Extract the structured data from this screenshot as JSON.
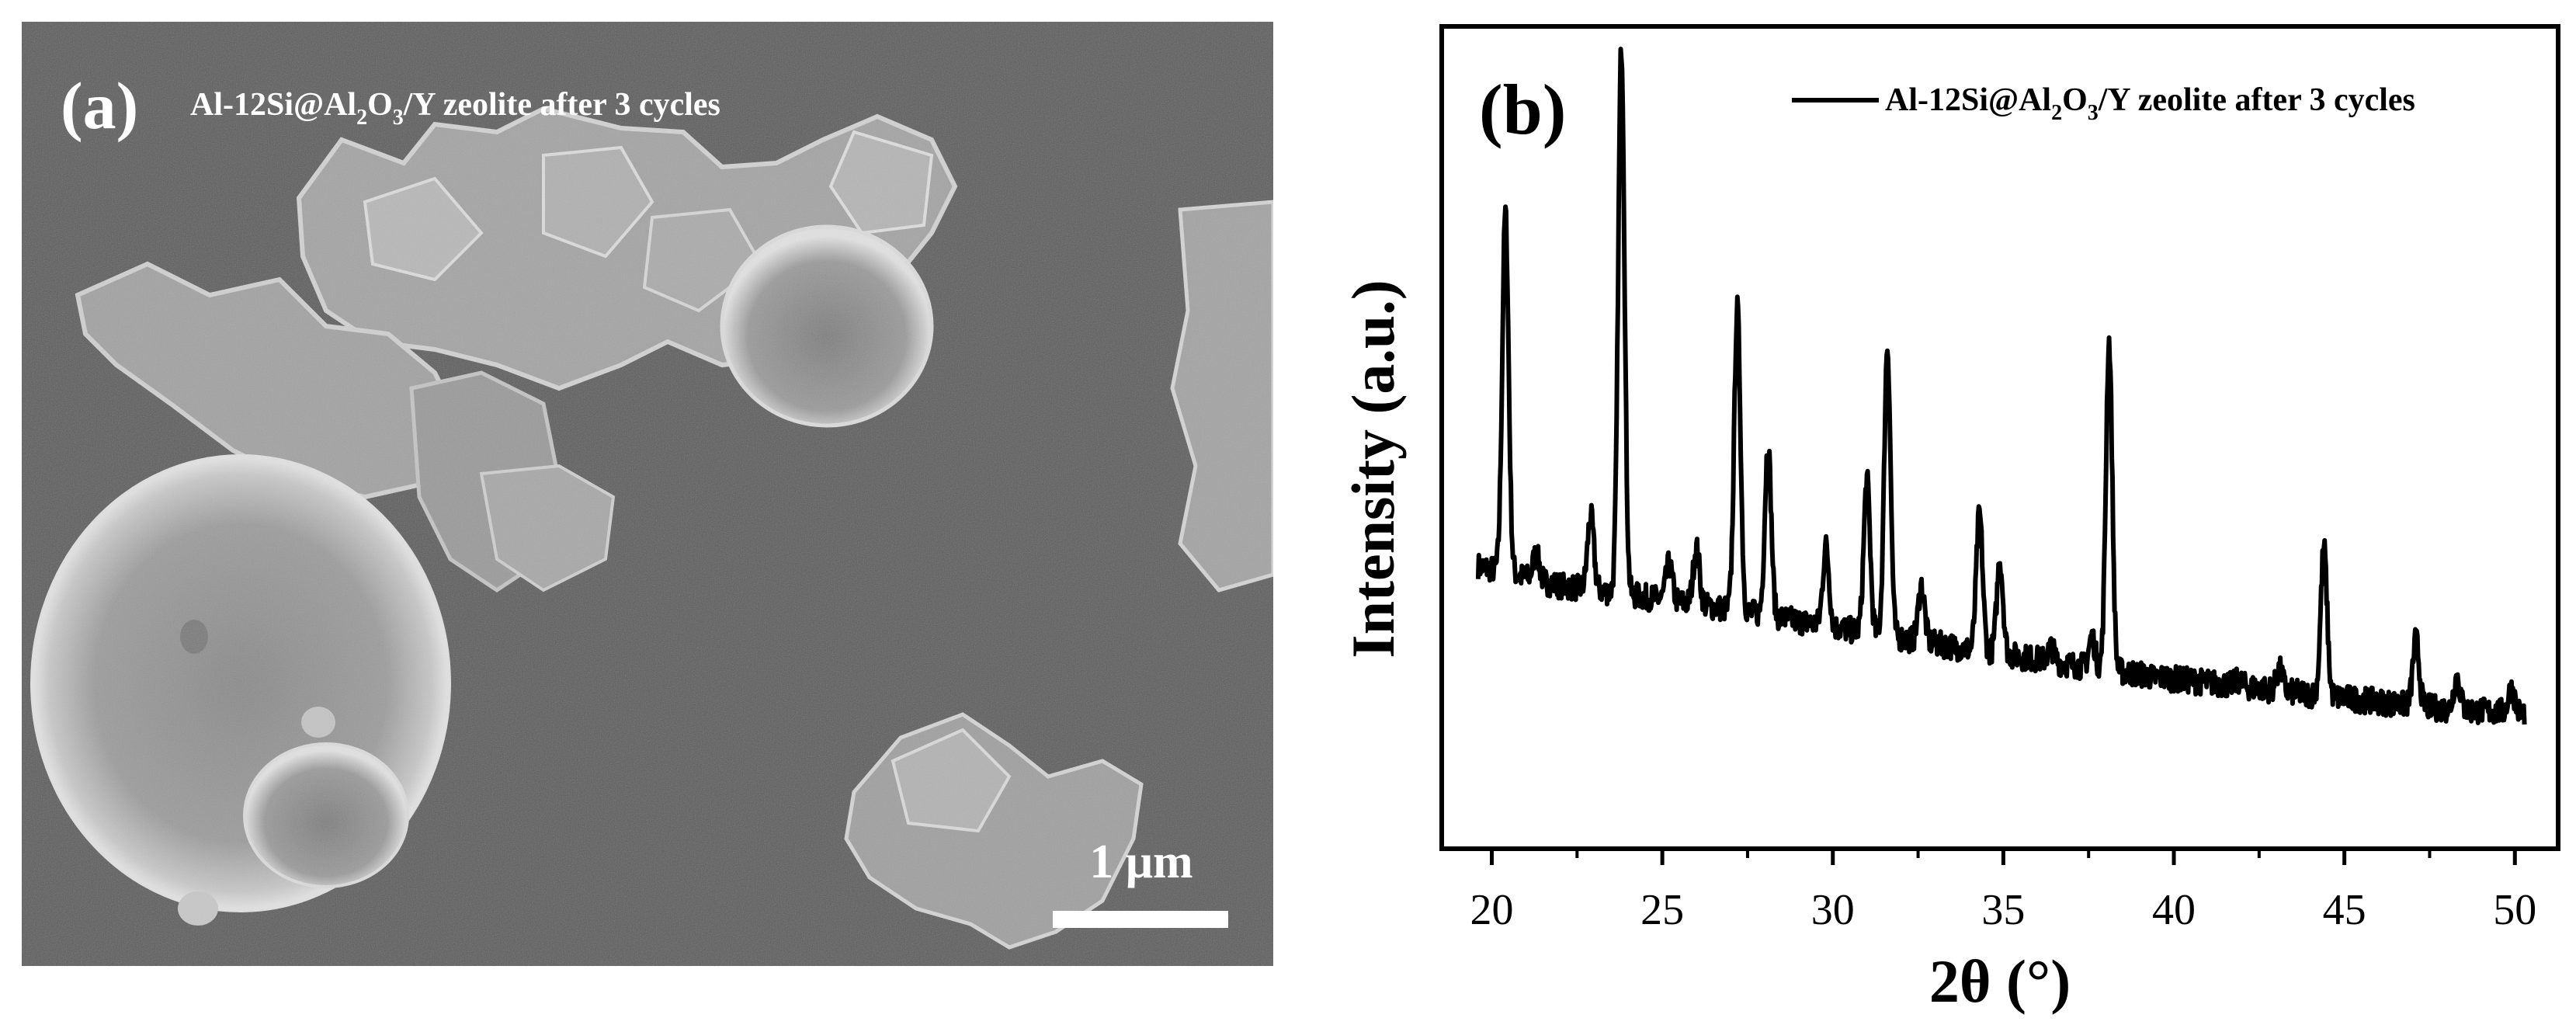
{
  "panel_a": {
    "label": "(a)",
    "caption_pre": "Al-12Si@Al",
    "caption_sub1": "2",
    "caption_mid": "O",
    "caption_sub2": "3",
    "caption_post": "/Y zeolite after 3 cycles",
    "scale_bar_label": "1 μm",
    "colors": {
      "background": "#5b5b5b",
      "particle": "#a9a9a9",
      "highlight": "#d9d9d9",
      "text": "#ffffff"
    }
  },
  "panel_b": {
    "label": "(b)",
    "chart_data": {
      "type": "line",
      "xlabel": "2θ (°)",
      "ylabel": "Intensity (a.u.)",
      "xlim": [
        18.6,
        51.2
      ],
      "ylim": [
        0,
        100
      ],
      "x_ticks": [
        20,
        25,
        30,
        35,
        40,
        45,
        50
      ],
      "y_ticks_labeled": false,
      "grid": false,
      "legend": "top-right",
      "legend_entry": {
        "pre": "Al-12Si@Al",
        "sub1": "2",
        "mid": "O",
        "sub2": "3",
        "post": "/Y zeolite after 3 cycles"
      },
      "series": [
        {
          "name": "Al-12Si@Al2O3/Y zeolite after 3 cycles",
          "color": "#000000",
          "baseline": [
            [
              19.6,
              34.3
            ],
            [
              21,
              32.9
            ],
            [
              22,
              31.9
            ],
            [
              24,
              30.8
            ],
            [
              26,
              29.6
            ],
            [
              28,
              28.3
            ],
            [
              30,
              26.8
            ],
            [
              32,
              25.5
            ],
            [
              34,
              24.1
            ],
            [
              36,
              22.9
            ],
            [
              38,
              21.6
            ],
            [
              40,
              20.5
            ],
            [
              42,
              19.6
            ],
            [
              44,
              18.6
            ],
            [
              46,
              17.7
            ],
            [
              48,
              16.8
            ],
            [
              50.3,
              16.3
            ]
          ],
          "peaks": [
            {
              "x": 20.4,
              "y": 77.5
            },
            {
              "x": 21.3,
              "y": 35.8
            },
            {
              "x": 22.9,
              "y": 40.4
            },
            {
              "x": 23.8,
              "y": 97.8
            },
            {
              "x": 25.2,
              "y": 34.5
            },
            {
              "x": 26.0,
              "y": 36.5
            },
            {
              "x": 27.2,
              "y": 65.8
            },
            {
              "x": 28.1,
              "y": 49.2
            },
            {
              "x": 29.8,
              "y": 36.7
            },
            {
              "x": 31.0,
              "y": 44.8
            },
            {
              "x": 31.6,
              "y": 61.2
            },
            {
              "x": 32.6,
              "y": 31.9
            },
            {
              "x": 34.3,
              "y": 40.6
            },
            {
              "x": 34.9,
              "y": 34.9
            },
            {
              "x": 36.4,
              "y": 24.3
            },
            {
              "x": 37.6,
              "y": 25.6
            },
            {
              "x": 38.1,
              "y": 61.7
            },
            {
              "x": 39.4,
              "y": 20.6
            },
            {
              "x": 41.9,
              "y": 20.3
            },
            {
              "x": 43.1,
              "y": 21.6
            },
            {
              "x": 44.4,
              "y": 36.5
            },
            {
              "x": 47.1,
              "y": 25.3
            },
            {
              "x": 48.3,
              "y": 20.7
            },
            {
              "x": 49.9,
              "y": 19.3
            }
          ]
        }
      ]
    }
  }
}
